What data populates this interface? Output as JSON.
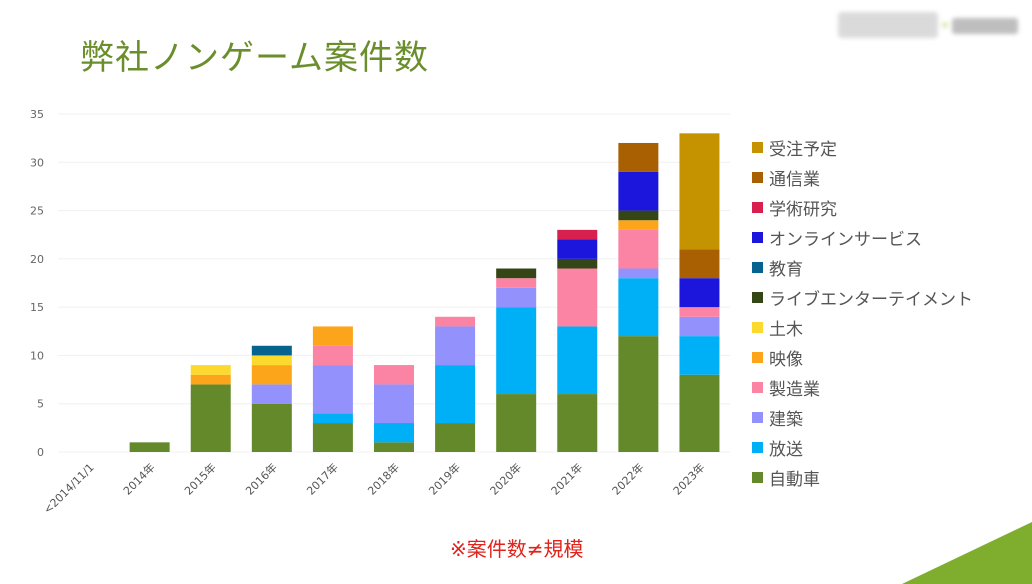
{
  "slide": {
    "title": "弊社ノンゲーム案件数",
    "note": "※案件数≠規模",
    "accent_color": "#7fae2e"
  },
  "logo": {
    "icon": "company-logo-blurred"
  },
  "chart_data": {
    "type": "bar",
    "stacked": true,
    "title": "",
    "xlabel": "",
    "ylabel": "",
    "ylim": [
      0,
      35
    ],
    "yticks": [
      0,
      5,
      10,
      15,
      20,
      25,
      30,
      35
    ],
    "grid": true,
    "legend_position": "right",
    "categories": [
      "<2014/11/1",
      "2014年",
      "2015年",
      "2016年",
      "2017年",
      "2018年",
      "2019年",
      "2020年",
      "2021年",
      "2022年",
      "2023年"
    ],
    "series": [
      {
        "name": "自動車",
        "color": "#64892a",
        "values": [
          0,
          1,
          7,
          5,
          3,
          1,
          3,
          6,
          6,
          12,
          8
        ]
      },
      {
        "name": "放送",
        "color": "#00b0f6",
        "values": [
          0,
          0,
          0,
          0,
          1,
          2,
          6,
          9,
          7,
          6,
          4
        ]
      },
      {
        "name": "建築",
        "color": "#9391fb",
        "values": [
          0,
          0,
          0,
          2,
          5,
          4,
          4,
          2,
          0,
          1,
          2
        ]
      },
      {
        "name": "製造業",
        "color": "#fb83a4",
        "values": [
          0,
          0,
          0,
          0,
          2,
          2,
          1,
          1,
          6,
          4,
          1
        ]
      },
      {
        "name": "映像",
        "color": "#fda51a",
        "values": [
          0,
          0,
          1,
          2,
          2,
          0,
          0,
          0,
          0,
          1,
          0
        ]
      },
      {
        "name": "土木",
        "color": "#fcd92d",
        "values": [
          0,
          0,
          1,
          1,
          0,
          0,
          0,
          0,
          0,
          0,
          0
        ]
      },
      {
        "name": "ライブエンターテイメント",
        "color": "#344516",
        "values": [
          0,
          0,
          0,
          0,
          0,
          0,
          0,
          1,
          1,
          1,
          0
        ]
      },
      {
        "name": "教育",
        "color": "#06628e",
        "values": [
          0,
          0,
          0,
          1,
          0,
          0,
          0,
          0,
          0,
          0,
          0
        ]
      },
      {
        "name": "オンラインサービス",
        "color": "#1c16dc",
        "values": [
          0,
          0,
          0,
          0,
          0,
          0,
          0,
          0,
          2,
          4,
          3
        ]
      },
      {
        "name": "学術研究",
        "color": "#d8204f",
        "values": [
          0,
          0,
          0,
          0,
          0,
          0,
          0,
          0,
          1,
          0,
          0
        ]
      },
      {
        "name": "通信業",
        "color": "#a96002",
        "values": [
          0,
          0,
          0,
          0,
          0,
          0,
          0,
          0,
          0,
          3,
          3
        ]
      },
      {
        "name": "受注予定",
        "color": "#c69300",
        "values": [
          0,
          0,
          0,
          0,
          0,
          0,
          0,
          0,
          0,
          0,
          12
        ]
      }
    ]
  }
}
